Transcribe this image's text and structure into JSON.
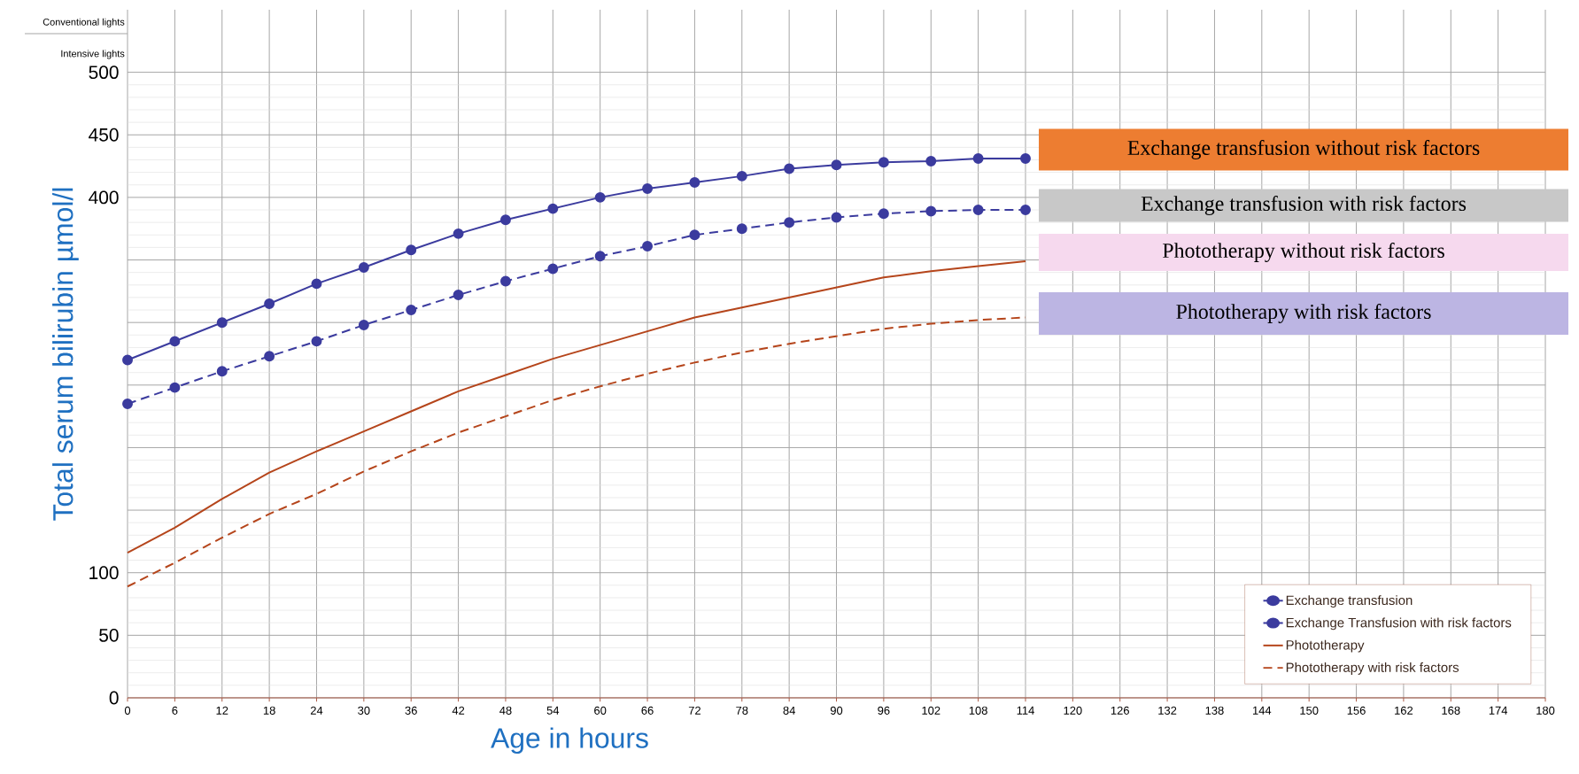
{
  "chart_data": {
    "type": "line",
    "xlabel": "Age in hours",
    "ylabel": "Total serum bilirubin µmol/l",
    "x": [
      0,
      6,
      12,
      18,
      24,
      30,
      36,
      42,
      48,
      54,
      60,
      66,
      72,
      78,
      84,
      90,
      96,
      102,
      108,
      114
    ],
    "series": [
      {
        "name": "Exchange transfusion",
        "color": "#3b3b9e",
        "marker": "circle",
        "line_style": "solid",
        "values": [
          270,
          285,
          300,
          315,
          331,
          344,
          358,
          371,
          382,
          391,
          400,
          407,
          412,
          417,
          423,
          426,
          428,
          429,
          431,
          431
        ]
      },
      {
        "name": "Exchange Transfusion with risk factors",
        "color": "#3b3b9e",
        "marker": "circle",
        "line_style": "dashed",
        "values": [
          235,
          248,
          261,
          273,
          285,
          298,
          310,
          322,
          333,
          343,
          353,
          361,
          370,
          375,
          380,
          384,
          387,
          389,
          390,
          390
        ]
      },
      {
        "name": "Phototherapy",
        "color": "#b5451b",
        "marker": "none",
        "line_style": "solid",
        "values": [
          116,
          136,
          159,
          180,
          197,
          213,
          229,
          245,
          258,
          271,
          282,
          293,
          304,
          312,
          320,
          328,
          336,
          341,
          345,
          349
        ]
      },
      {
        "name": "Phototherapy with risk factors",
        "color": "#b5451b",
        "marker": "none",
        "line_style": "dashed",
        "values": [
          89,
          108,
          128,
          147,
          163,
          181,
          197,
          212,
          225,
          238,
          249,
          259,
          268,
          276,
          283,
          289,
          295,
          299,
          302,
          304
        ]
      }
    ],
    "xlim": [
      0,
      180
    ],
    "ylim": [
      0,
      550
    ],
    "xticks": [
      0,
      6,
      12,
      18,
      24,
      30,
      36,
      42,
      48,
      54,
      60,
      66,
      72,
      78,
      84,
      90,
      96,
      102,
      108,
      114,
      120,
      126,
      132,
      138,
      144,
      150,
      156,
      162,
      168,
      174,
      180
    ],
    "yticks": [
      0,
      50,
      100,
      {
        "value": 150,
        "label": null
      },
      {
        "value": 200,
        "label": null
      },
      {
        "value": 250,
        "label": null
      },
      {
        "value": 300,
        "label": null
      },
      {
        "value": 350,
        "label": null
      },
      400,
      450,
      500
    ],
    "grid": true,
    "legend": "bottom right",
    "annotations": [
      "Conventional lights",
      "Intensive lights",
      "Exchange transfusion without risk factors",
      "Exchange transfusion with risk factors",
      "Phototherapy without risk factors",
      "Phototherapy with risk factors"
    ]
  }
}
